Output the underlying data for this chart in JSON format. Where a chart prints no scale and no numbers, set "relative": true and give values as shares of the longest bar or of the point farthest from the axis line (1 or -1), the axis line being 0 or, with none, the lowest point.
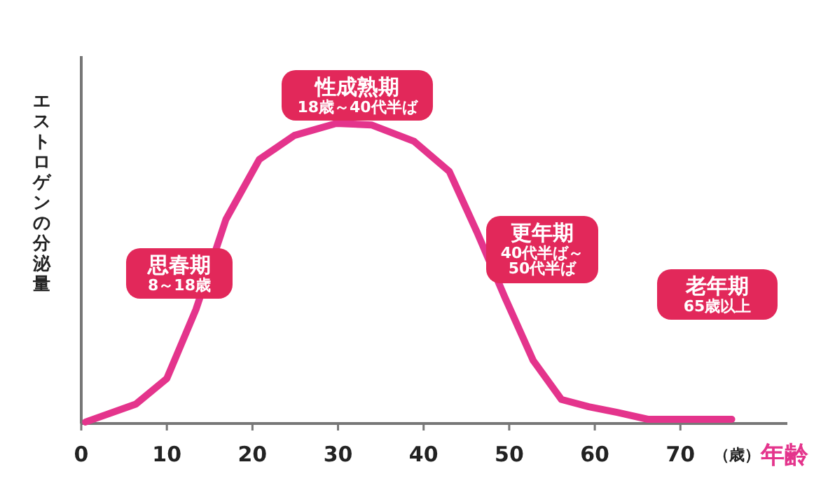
{
  "chart_data": {
    "type": "line",
    "relative": true,
    "ylabel": "エストロゲンの分泌量",
    "xlabel": "年齢",
    "x": [
      0.5,
      6.4,
      10,
      13.4,
      16.9,
      20.8,
      24.9,
      29.8,
      33.9,
      38.9,
      43,
      46.2,
      49.5,
      52.8,
      56.1,
      59.3,
      62.6,
      66.2,
      76
    ],
    "series": [
      {
        "color": "#e4348c",
        "values": [
          0.005,
          0.065,
          0.15,
          0.38,
          0.68,
          0.88,
          0.96,
          1.0,
          0.995,
          0.94,
          0.84,
          0.64,
          0.42,
          0.21,
          0.08,
          0.056,
          0.037,
          0.014,
          0.014
        ]
      }
    ],
    "xlim": [
      0,
      82.5
    ],
    "xticks": [
      0,
      10,
      20,
      30,
      40,
      50,
      60,
      70
    ],
    "grid": false,
    "marker": "none",
    "line_style": "solid",
    "annotations": [
      "思春期\n8～18歳",
      "性成熟期\n18歳～40代半ば",
      "更年期\n40代半ば～\n50代半ば",
      "老年期\n65歳以上",
      "（歳）"
    ]
  }
}
